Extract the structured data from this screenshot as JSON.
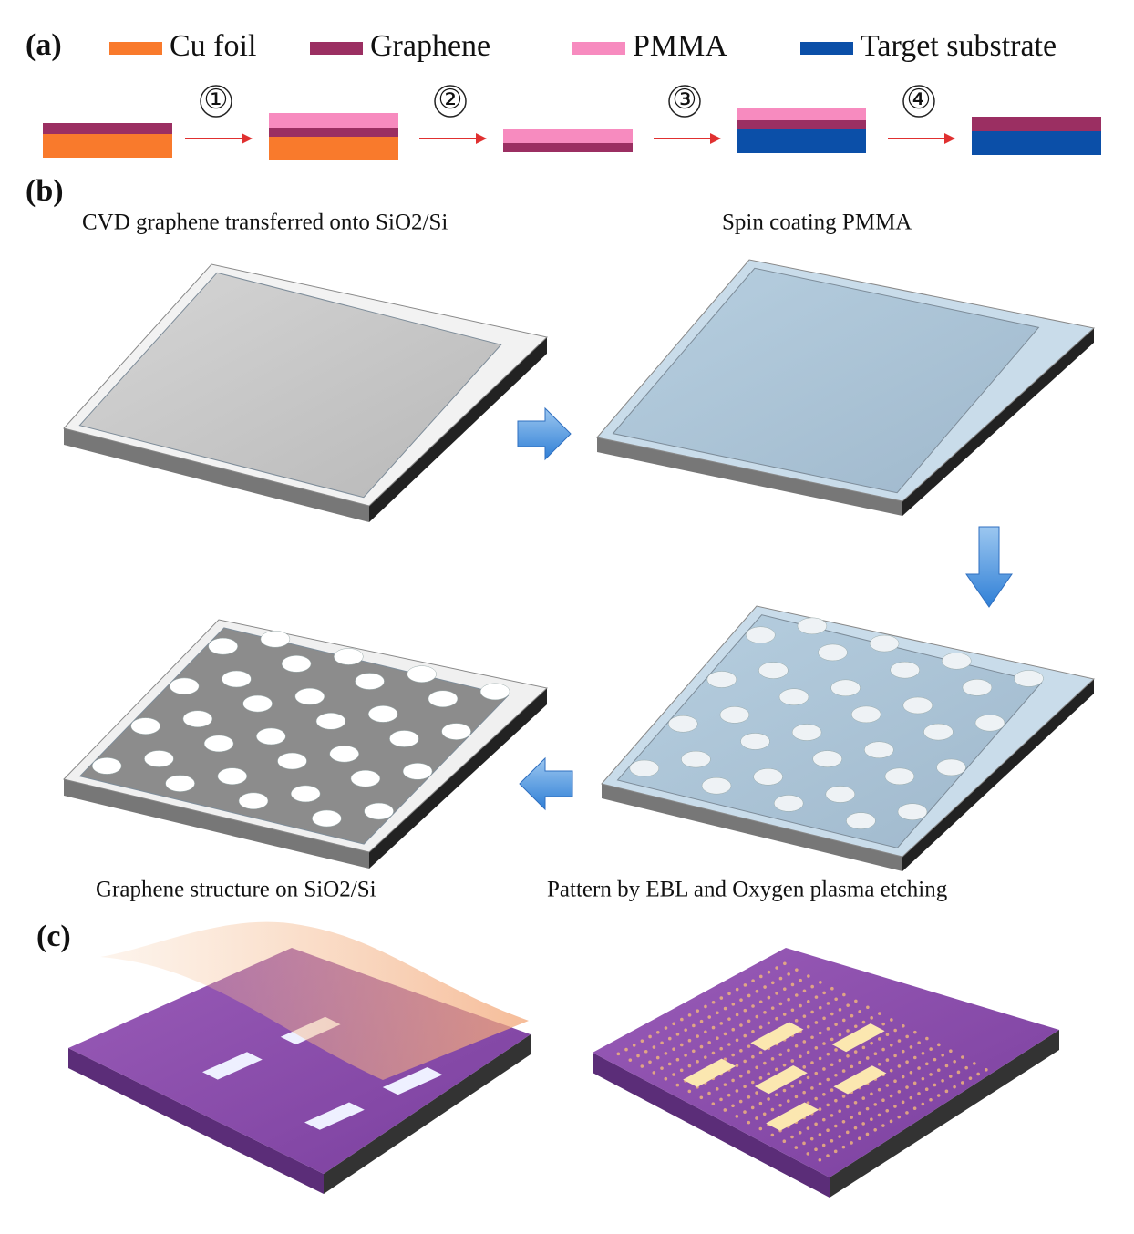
{
  "panel_a": {
    "label": "(a)",
    "legend": [
      {
        "label": "Cu foil",
        "color": "#f97a2c"
      },
      {
        "label": "Graphene",
        "color": "#9b2f62"
      },
      {
        "label": "PMMA",
        "color": "#f78bbf"
      },
      {
        "label": "Target substrate",
        "color": "#0b4fa8"
      }
    ],
    "steps": [
      "①",
      "②",
      "③",
      "④"
    ]
  },
  "panel_b": {
    "label": "(b)",
    "captions": [
      "CVD graphene transferred onto SiO2/Si",
      "Spin coating PMMA",
      "Pattern by EBL and Oxygen plasma etching",
      "Graphene structure on SiO2/Si"
    ]
  },
  "panel_c": {
    "label": "(c)"
  }
}
